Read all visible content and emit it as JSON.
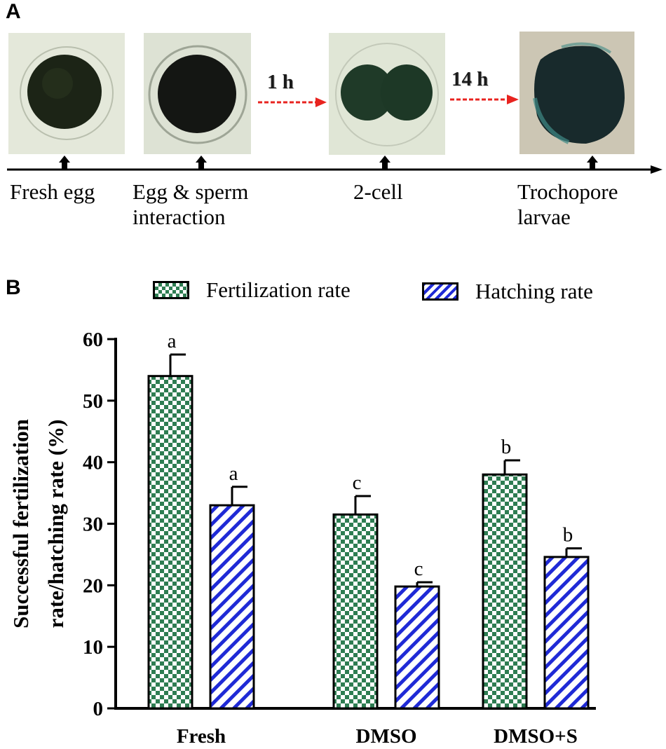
{
  "panel_a": {
    "letter": "A",
    "stages": [
      {
        "label": "Fresh egg"
      },
      {
        "label": "Egg & sperm\ninteraction"
      },
      {
        "label": "2-cell"
      },
      {
        "label": "Trochopore\nlarvae"
      }
    ],
    "intervals": [
      "1 h",
      "14 h"
    ],
    "colors": {
      "arrow": "#e8231f",
      "micrograph_bg": "#e2e7d8"
    }
  },
  "panel_b": {
    "letter": "B"
  },
  "chart_data": {
    "type": "bar",
    "title": "",
    "xlabel": "",
    "ylabel": "Successful fertilization\nrate/hatching rate (%)",
    "categories": [
      "Fresh",
      "DMSO",
      "DMSO+S"
    ],
    "ylim": [
      0,
      60
    ],
    "yticks": [
      0,
      10,
      20,
      30,
      40,
      50,
      60
    ],
    "legend_position": "top",
    "series": [
      {
        "name": "Fertilization rate",
        "pattern": "checkerboard",
        "color": "#2e7d52",
        "values": [
          54,
          31.5,
          38
        ],
        "errors": [
          3.5,
          3,
          2.3
        ],
        "letters": [
          "a",
          "c",
          "b"
        ]
      },
      {
        "name": "Hatching rate",
        "pattern": "diagonal-stripes",
        "color": "#1f2ad6",
        "values": [
          33,
          19.8,
          24.6
        ],
        "errors": [
          3,
          0.7,
          1.4
        ],
        "letters": [
          "a",
          "c",
          "b"
        ]
      }
    ]
  }
}
